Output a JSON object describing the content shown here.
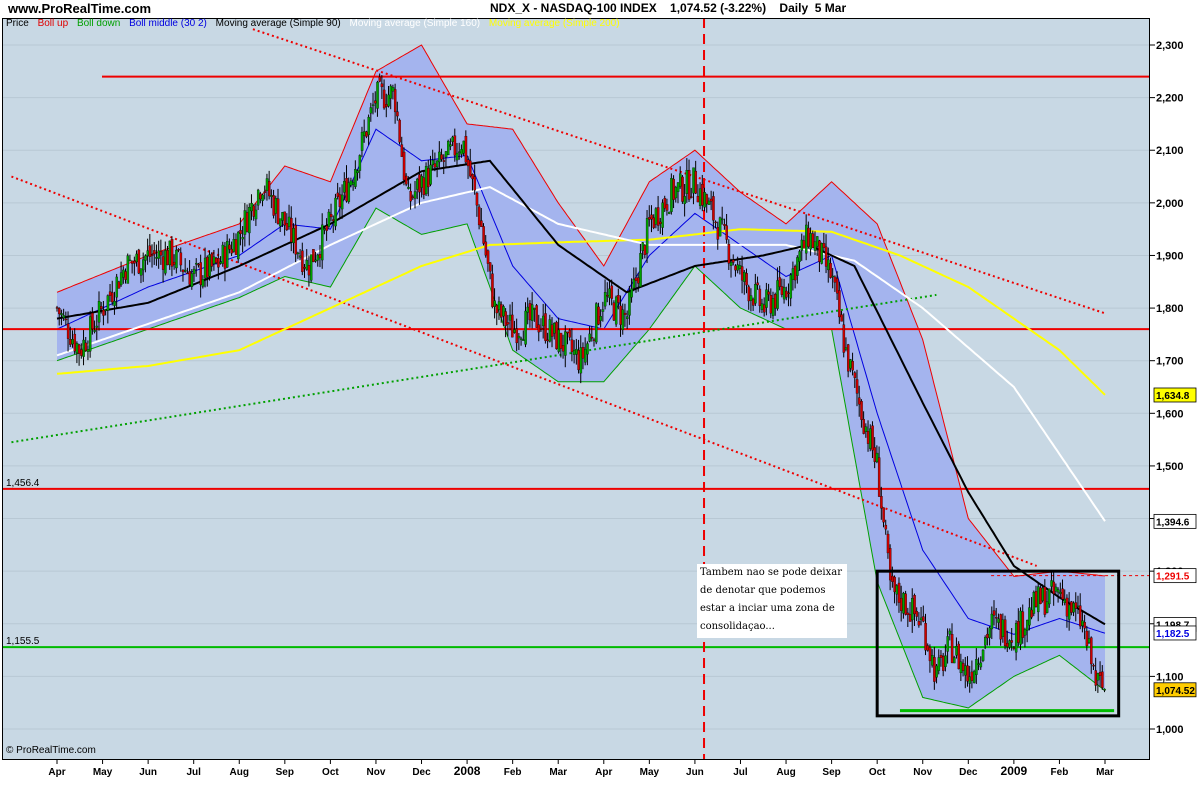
{
  "header": {
    "site": "www.ProRealTime.com",
    "title": "NDX_X - NASDAQ-100 INDEX    1,074.52 (-3.22%)    Daily  5 Mar"
  },
  "legend": {
    "price": "Price",
    "boll_up": "Boll up",
    "boll_down": "Boll down",
    "boll_middle": "Boll middle (30 2)",
    "ma90": "Moving average (Simple 90)",
    "ma160": "Moving average (Simple 160)",
    "ma200": "Moving average (Simple 200)"
  },
  "colors": {
    "background": "#c8d8e4",
    "band_fill": "#a4b4ee",
    "boll_up": "#ee0000",
    "boll_down": "#00a000",
    "boll_middle": "#0000e0",
    "ma90": "#000000",
    "ma160": "#ffffff",
    "ma200": "#ffff00",
    "candle_up": "#00a000",
    "candle_down": "#cc0000",
    "horizontal_red": "#ee0000",
    "horizontal_green": "#00bb00"
  },
  "note": {
    "text": "Tambem nao se pode deixar de denotar que podemos estar a inciar uma zona de consolidaçao..."
  },
  "footer": {
    "credit": "© ProRealTime.com"
  },
  "chart_data": {
    "type": "candlestick",
    "instrument": "NDX_X - NASDAQ-100 INDEX",
    "last_close": 1074.52,
    "change_pct": -3.22,
    "period": "Daily",
    "ylim": [
      960,
      2360
    ],
    "x_ticks": [
      "Apr",
      "May",
      "Jun",
      "Jul",
      "Aug",
      "Sep",
      "Oct",
      "Nov",
      "Dec",
      "2008",
      "Feb",
      "Mar",
      "Apr",
      "May",
      "Jun",
      "Jul",
      "Aug",
      "Sep",
      "Oct",
      "Nov",
      "Dec",
      "2009",
      "Feb",
      "Mar"
    ],
    "y_ticks": [
      "1,000",
      "1,100",
      "1,200",
      "1,300",
      "1,400",
      "1,500",
      "1,600",
      "1,700",
      "1,800",
      "1,900",
      "2,000",
      "2,100",
      "2,200",
      "2,300"
    ],
    "y_tick_values": [
      1000,
      1100,
      1200,
      1300,
      1400,
      1500,
      1600,
      1700,
      1800,
      1900,
      2000,
      2100,
      2200,
      2300
    ],
    "horizontal_lines": [
      {
        "value": 2240,
        "color": "#ee0000"
      },
      {
        "value": 1760,
        "color": "#ee0000"
      },
      {
        "value": 1456.4,
        "color": "#ee0000",
        "label": "1,456.4"
      },
      {
        "value": 1155.5,
        "color": "#00bb00",
        "label": "1,155.5"
      },
      {
        "value": 1291.5,
        "color": "#ee0000",
        "dotted": true
      }
    ],
    "right_labels": [
      {
        "text": "1,634.8",
        "value": 1634.8,
        "bg": "#ffff00",
        "color": "#000000"
      },
      {
        "text": "1,394.6",
        "value": 1394.6,
        "bg": "#ffffff",
        "color": "#000000"
      },
      {
        "text": "1,291.5",
        "value": 1291.5,
        "bg": "#ffffff",
        "color": "#ee0000"
      },
      {
        "text": "1,198.7",
        "value": 1198.7,
        "bg": "#ffffff",
        "color": "#000000"
      },
      {
        "text": "1,182.5",
        "value": 1182.5,
        "bg": "#ffffff",
        "color": "#0000e0"
      },
      {
        "text": "1,074.52",
        "value": 1074.52,
        "bg": "#ffcc00",
        "color": "#000000"
      }
    ],
    "price_path": [
      {
        "x": 0.0,
        "y": 1800
      },
      {
        "x": 0.5,
        "y": 1720
      },
      {
        "x": 1.0,
        "y": 1800
      },
      {
        "x": 1.5,
        "y": 1880
      },
      {
        "x": 2.0,
        "y": 1900
      },
      {
        "x": 2.5,
        "y": 1900
      },
      {
        "x": 3.0,
        "y": 1860
      },
      {
        "x": 3.5,
        "y": 1880
      },
      {
        "x": 4.0,
        "y": 1940
      },
      {
        "x": 4.5,
        "y": 2040
      },
      {
        "x": 5.0,
        "y": 1960
      },
      {
        "x": 5.5,
        "y": 1880
      },
      {
        "x": 6.0,
        "y": 1960
      },
      {
        "x": 6.5,
        "y": 2060
      },
      {
        "x": 7.0,
        "y": 2200
      },
      {
        "x": 7.4,
        "y": 2210
      },
      {
        "x": 7.7,
        "y": 2000
      },
      {
        "x": 8.0,
        "y": 2040
      },
      {
        "x": 8.5,
        "y": 2080
      },
      {
        "x": 8.9,
        "y": 2120
      },
      {
        "x": 9.3,
        "y": 1960
      },
      {
        "x": 9.6,
        "y": 1800
      },
      {
        "x": 10.0,
        "y": 1760
      },
      {
        "x": 10.5,
        "y": 1780
      },
      {
        "x": 11.0,
        "y": 1740
      },
      {
        "x": 11.5,
        "y": 1700
      },
      {
        "x": 12.0,
        "y": 1820
      },
      {
        "x": 12.5,
        "y": 1780
      },
      {
        "x": 13.0,
        "y": 1960
      },
      {
        "x": 13.5,
        "y": 2020
      },
      {
        "x": 14.0,
        "y": 2040
      },
      {
        "x": 14.5,
        "y": 1960
      },
      {
        "x": 15.0,
        "y": 1860
      },
      {
        "x": 15.5,
        "y": 1800
      },
      {
        "x": 16.0,
        "y": 1840
      },
      {
        "x": 16.5,
        "y": 1940
      },
      {
        "x": 17.0,
        "y": 1860
      },
      {
        "x": 17.3,
        "y": 1720
      },
      {
        "x": 17.6,
        "y": 1620
      },
      {
        "x": 18.0,
        "y": 1500
      },
      {
        "x": 18.3,
        "y": 1260
      },
      {
        "x": 18.6,
        "y": 1240
      },
      {
        "x": 19.0,
        "y": 1200
      },
      {
        "x": 19.3,
        "y": 1100
      },
      {
        "x": 19.6,
        "y": 1160
      },
      {
        "x": 20.0,
        "y": 1100
      },
      {
        "x": 20.5,
        "y": 1200
      },
      {
        "x": 21.0,
        "y": 1180
      },
      {
        "x": 21.5,
        "y": 1240
      },
      {
        "x": 22.0,
        "y": 1260
      },
      {
        "x": 22.5,
        "y": 1200
      },
      {
        "x": 22.8,
        "y": 1090
      },
      {
        "x": 23.0,
        "y": 1074.52
      }
    ],
    "ma200": [
      {
        "x": 0,
        "y": 1675
      },
      {
        "x": 2,
        "y": 1690
      },
      {
        "x": 4,
        "y": 1720
      },
      {
        "x": 6,
        "y": 1800
      },
      {
        "x": 8,
        "y": 1880
      },
      {
        "x": 9.5,
        "y": 1920
      },
      {
        "x": 11,
        "y": 1925
      },
      {
        "x": 13,
        "y": 1930
      },
      {
        "x": 15,
        "y": 1950
      },
      {
        "x": 17,
        "y": 1945
      },
      {
        "x": 18.5,
        "y": 1900
      },
      {
        "x": 20,
        "y": 1840
      },
      {
        "x": 22,
        "y": 1720
      },
      {
        "x": 23,
        "y": 1635
      }
    ],
    "ma160": [
      {
        "x": 0,
        "y": 1710
      },
      {
        "x": 2,
        "y": 1770
      },
      {
        "x": 4,
        "y": 1830
      },
      {
        "x": 6,
        "y": 1920
      },
      {
        "x": 8,
        "y": 2000
      },
      {
        "x": 9.5,
        "y": 2030
      },
      {
        "x": 11,
        "y": 1960
      },
      {
        "x": 13,
        "y": 1920
      },
      {
        "x": 14.5,
        "y": 1920
      },
      {
        "x": 16,
        "y": 1920
      },
      {
        "x": 17.5,
        "y": 1890
      },
      {
        "x": 19,
        "y": 1800
      },
      {
        "x": 21,
        "y": 1650
      },
      {
        "x": 23,
        "y": 1395
      }
    ],
    "ma90": [
      {
        "x": 0,
        "y": 1780
      },
      {
        "x": 2,
        "y": 1810
      },
      {
        "x": 4,
        "y": 1880
      },
      {
        "x": 6,
        "y": 1960
      },
      {
        "x": 8,
        "y": 2060
      },
      {
        "x": 9.5,
        "y": 2080
      },
      {
        "x": 11,
        "y": 1920
      },
      {
        "x": 12.5,
        "y": 1830
      },
      {
        "x": 14,
        "y": 1880
      },
      {
        "x": 15.5,
        "y": 1900
      },
      {
        "x": 16.5,
        "y": 1920
      },
      {
        "x": 17.5,
        "y": 1880
      },
      {
        "x": 19,
        "y": 1620
      },
      {
        "x": 20,
        "y": 1450
      },
      {
        "x": 21,
        "y": 1310
      },
      {
        "x": 22,
        "y": 1250
      },
      {
        "x": 23,
        "y": 1199
      }
    ],
    "boll_middle": [
      {
        "x": 0,
        "y": 1760
      },
      {
        "x": 2,
        "y": 1840
      },
      {
        "x": 4,
        "y": 1900
      },
      {
        "x": 5,
        "y": 1960
      },
      {
        "x": 6,
        "y": 1950
      },
      {
        "x": 7,
        "y": 2140
      },
      {
        "x": 8,
        "y": 2080
      },
      {
        "x": 9,
        "y": 2090
      },
      {
        "x": 10,
        "y": 1880
      },
      {
        "x": 11,
        "y": 1780
      },
      {
        "x": 12,
        "y": 1760
      },
      {
        "x": 13,
        "y": 1900
      },
      {
        "x": 14,
        "y": 1980
      },
      {
        "x": 15,
        "y": 1920
      },
      {
        "x": 16,
        "y": 1860
      },
      {
        "x": 17,
        "y": 1900
      },
      {
        "x": 18,
        "y": 1600
      },
      {
        "x": 19,
        "y": 1340
      },
      {
        "x": 20,
        "y": 1210
      },
      {
        "x": 21,
        "y": 1180
      },
      {
        "x": 22,
        "y": 1210
      },
      {
        "x": 23,
        "y": 1182
      }
    ],
    "boll_up": [
      {
        "x": 0,
        "y": 1830
      },
      {
        "x": 2,
        "y": 1900
      },
      {
        "x": 4,
        "y": 1960
      },
      {
        "x": 5,
        "y": 2070
      },
      {
        "x": 6,
        "y": 2040
      },
      {
        "x": 7,
        "y": 2250
      },
      {
        "x": 8,
        "y": 2300
      },
      {
        "x": 9,
        "y": 2150
      },
      {
        "x": 10,
        "y": 2140
      },
      {
        "x": 11,
        "y": 2000
      },
      {
        "x": 12,
        "y": 1880
      },
      {
        "x": 13,
        "y": 2040
      },
      {
        "x": 14,
        "y": 2100
      },
      {
        "x": 15,
        "y": 2020
      },
      {
        "x": 16,
        "y": 1960
      },
      {
        "x": 17,
        "y": 2040
      },
      {
        "x": 18,
        "y": 1960
      },
      {
        "x": 19,
        "y": 1740
      },
      {
        "x": 20,
        "y": 1400
      },
      {
        "x": 21,
        "y": 1290
      },
      {
        "x": 22,
        "y": 1300
      },
      {
        "x": 23,
        "y": 1291
      }
    ],
    "boll_down": [
      {
        "x": 0,
        "y": 1700
      },
      {
        "x": 2,
        "y": 1760
      },
      {
        "x": 4,
        "y": 1820
      },
      {
        "x": 5,
        "y": 1860
      },
      {
        "x": 6,
        "y": 1840
      },
      {
        "x": 7,
        "y": 1990
      },
      {
        "x": 8,
        "y": 1940
      },
      {
        "x": 9,
        "y": 1960
      },
      {
        "x": 10,
        "y": 1720
      },
      {
        "x": 11,
        "y": 1660
      },
      {
        "x": 12,
        "y": 1660
      },
      {
        "x": 13,
        "y": 1760
      },
      {
        "x": 14,
        "y": 1880
      },
      {
        "x": 15,
        "y": 1800
      },
      {
        "x": 16,
        "y": 1760
      },
      {
        "x": 17,
        "y": 1760
      },
      {
        "x": 18,
        "y": 1280
      },
      {
        "x": 19,
        "y": 1060
      },
      {
        "x": 20,
        "y": 1040
      },
      {
        "x": 21,
        "y": 1100
      },
      {
        "x": 22,
        "y": 1140
      },
      {
        "x": 23,
        "y": 1073
      }
    ],
    "trendlines": [
      {
        "x1": 4.3,
        "y1": 2330,
        "x2": 23.0,
        "y2": 1790,
        "color": "#ee0000",
        "dotted": true
      },
      {
        "x1": -1.0,
        "y1": 2050,
        "x2": 21.5,
        "y2": 1310,
        "color": "#ee0000",
        "dotted": true
      },
      {
        "x1": -1.0,
        "y1": 1545,
        "x2": 19.3,
        "y2": 1825,
        "color": "#00a000",
        "dotted": true
      }
    ],
    "vertical_marker": {
      "x": 14.2,
      "color": "#ee0000",
      "dashed": true
    },
    "consolidation_box": {
      "x1": 18.0,
      "y1": 1300,
      "x2": 23.3,
      "y2": 1025
    },
    "support_segment": {
      "x1": 18.5,
      "y1": 1035,
      "x2": 23.2,
      "y2": 1035
    }
  }
}
